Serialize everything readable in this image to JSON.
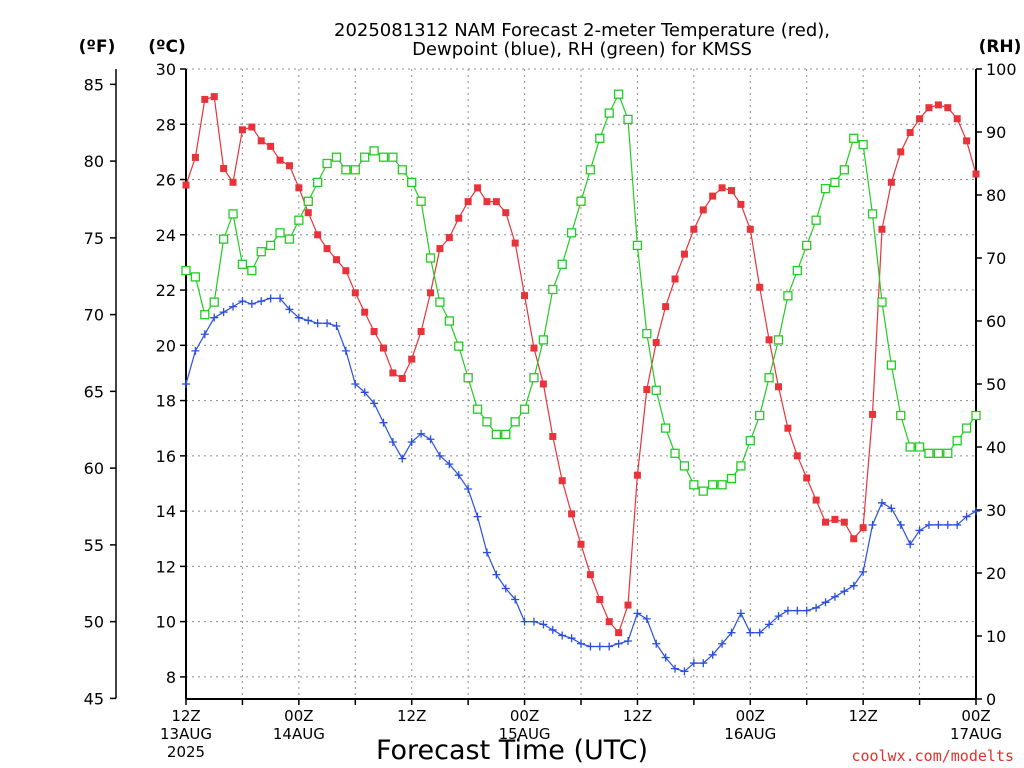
{
  "title": [
    "2025081312 NAM Forecast 2-meter Temperature (red),",
    "Dewpoint (blue), RH (green) for KMSS"
  ],
  "units": {
    "fahrenheit": "(ºF)",
    "celsius": "(ºC)",
    "rh": "(RH)"
  },
  "xlabel": "Forecast Time (UTC)",
  "credit": "coolwx.com/modelts",
  "colors": {
    "temperature": "#e8333a",
    "dewpoint": "#2a4fe0",
    "rh": "#22cc22",
    "axis": "#000000"
  },
  "chart_data": {
    "type": "line",
    "x_unit": "forecast hour from 2025-08-13 12Z",
    "xlim": [
      0,
      84
    ],
    "ylim_celsius": [
      7.2,
      30
    ],
    "ylim_rh": [
      0,
      100
    ],
    "fahrenheit_ticks": [
      45,
      50,
      55,
      60,
      65,
      70,
      75,
      80,
      85
    ],
    "celsius_ticks": [
      8,
      10,
      12,
      14,
      16,
      18,
      20,
      22,
      24,
      26,
      28,
      30
    ],
    "rh_ticks": [
      0,
      10,
      20,
      30,
      40,
      50,
      60,
      70,
      80,
      90,
      100
    ],
    "x_ticks": [
      {
        "hour": 0,
        "label": "12Z",
        "sub": "13AUG",
        "sub2": "2025"
      },
      {
        "hour": 12,
        "label": "00Z",
        "sub": "14AUG",
        "sub2": ""
      },
      {
        "hour": 24,
        "label": "12Z",
        "sub": "",
        "sub2": ""
      },
      {
        "hour": 36,
        "label": "00Z",
        "sub": "15AUG",
        "sub2": ""
      },
      {
        "hour": 48,
        "label": "12Z",
        "sub": "",
        "sub2": ""
      },
      {
        "hour": 60,
        "label": "00Z",
        "sub": "16AUG",
        "sub2": ""
      },
      {
        "hour": 72,
        "label": "12Z",
        "sub": "",
        "sub2": ""
      },
      {
        "hour": 84,
        "label": "00Z",
        "sub": "17AUG",
        "sub2": ""
      }
    ],
    "series": [
      {
        "name": "Temperature",
        "axis": "celsius",
        "x": [
          0,
          1,
          2,
          3,
          4,
          5,
          6,
          7,
          8,
          9,
          10,
          11,
          12,
          13,
          14,
          15,
          16,
          17,
          18,
          19,
          20,
          21,
          22,
          23,
          24,
          25,
          26,
          27,
          28,
          29,
          30,
          31,
          32,
          33,
          34,
          35,
          36,
          37,
          38,
          39,
          40,
          41,
          42,
          43,
          44,
          45,
          46,
          47,
          48,
          49,
          50,
          51,
          52,
          53,
          54,
          55,
          56,
          57,
          58,
          59,
          60,
          61,
          62,
          63,
          64,
          65,
          66,
          67,
          68,
          69,
          70,
          71,
          72,
          73,
          74,
          75,
          76,
          77,
          78,
          79,
          80,
          81,
          82,
          83,
          84
        ],
        "values": [
          25.8,
          26.8,
          28.9,
          29.0,
          26.4,
          25.9,
          27.8,
          27.9,
          27.4,
          27.2,
          26.7,
          26.5,
          25.7,
          24.8,
          24.0,
          23.5,
          23.1,
          22.7,
          21.9,
          21.2,
          20.5,
          19.9,
          19.0,
          18.8,
          19.5,
          20.5,
          21.9,
          23.5,
          23.9,
          24.6,
          25.2,
          25.7,
          25.2,
          25.2,
          24.8,
          23.7,
          21.8,
          19.9,
          18.6,
          16.7,
          15.1,
          13.9,
          12.8,
          11.7,
          10.8,
          10.0,
          9.6,
          10.6,
          15.3,
          18.4,
          20.1,
          21.4,
          22.4,
          23.3,
          24.2,
          24.9,
          25.4,
          25.7,
          25.6,
          25.1,
          24.2,
          22.1,
          20.2,
          18.5,
          17.0,
          16.0,
          15.2,
          14.4,
          13.6,
          13.7,
          13.6,
          13.0,
          13.4,
          17.5,
          24.2,
          25.9,
          27.0,
          27.7,
          28.2,
          28.6,
          28.7,
          28.6,
          28.2,
          27.4,
          26.2
        ]
      },
      {
        "name": "Dewpoint",
        "axis": "celsius",
        "x": [
          0,
          1,
          2,
          3,
          4,
          5,
          6,
          7,
          8,
          9,
          10,
          11,
          12,
          13,
          14,
          15,
          16,
          17,
          18,
          19,
          20,
          21,
          22,
          23,
          24,
          25,
          26,
          27,
          28,
          29,
          30,
          31,
          32,
          33,
          34,
          35,
          36,
          37,
          38,
          39,
          40,
          41,
          42,
          43,
          44,
          45,
          46,
          47,
          48,
          49,
          50,
          51,
          52,
          53,
          54,
          55,
          56,
          57,
          58,
          59,
          60,
          61,
          62,
          63,
          64,
          65,
          66,
          67,
          68,
          69,
          70,
          71,
          72,
          73,
          74,
          75,
          76,
          77,
          78,
          79,
          80,
          81,
          82,
          83,
          84
        ],
        "values": [
          18.6,
          19.8,
          20.4,
          21.0,
          21.2,
          21.4,
          21.6,
          21.5,
          21.6,
          21.7,
          21.7,
          21.3,
          21.0,
          20.9,
          20.8,
          20.8,
          20.7,
          19.8,
          18.6,
          18.3,
          17.9,
          17.2,
          16.5,
          15.9,
          16.5,
          16.8,
          16.6,
          16.0,
          15.7,
          15.3,
          14.8,
          13.8,
          12.5,
          11.7,
          11.2,
          10.8,
          10.0,
          10.0,
          9.9,
          9.7,
          9.5,
          9.4,
          9.2,
          9.1,
          9.1,
          9.1,
          9.2,
          9.3,
          10.3,
          10.1,
          9.2,
          8.7,
          8.3,
          8.2,
          8.5,
          8.5,
          8.8,
          9.2,
          9.6,
          10.3,
          9.6,
          9.6,
          9.9,
          10.2,
          10.4,
          10.4,
          10.4,
          10.5,
          10.7,
          10.9,
          11.1,
          11.3,
          11.8,
          13.5,
          14.3,
          14.1,
          13.5,
          12.8,
          13.3,
          13.5,
          13.5,
          13.5,
          13.5,
          13.8,
          14.0
        ]
      },
      {
        "name": "RH",
        "axis": "rh",
        "x": [
          0,
          1,
          2,
          3,
          4,
          5,
          6,
          7,
          8,
          9,
          10,
          11,
          12,
          13,
          14,
          15,
          16,
          17,
          18,
          19,
          20,
          21,
          22,
          23,
          24,
          25,
          26,
          27,
          28,
          29,
          30,
          31,
          32,
          33,
          34,
          35,
          36,
          37,
          38,
          39,
          40,
          41,
          42,
          43,
          44,
          45,
          46,
          47,
          48,
          49,
          50,
          51,
          52,
          53,
          54,
          55,
          56,
          57,
          58,
          59,
          60,
          61,
          62,
          63,
          64,
          65,
          66,
          67,
          68,
          69,
          70,
          71,
          72,
          73,
          74,
          75,
          76,
          77,
          78,
          79,
          80,
          81,
          82,
          83,
          84
        ],
        "values": [
          68,
          67,
          61,
          63,
          73,
          77,
          69,
          68,
          71,
          72,
          74,
          73,
          76,
          79,
          82,
          85,
          86,
          84,
          84,
          86,
          87,
          86,
          86,
          84,
          82,
          79,
          70,
          63,
          60,
          56,
          51,
          46,
          44,
          42,
          42,
          44,
          46,
          51,
          57,
          65,
          69,
          74,
          79,
          84,
          89,
          93,
          96,
          92,
          72,
          58,
          49,
          43,
          39,
          37,
          34,
          33,
          34,
          34,
          35,
          37,
          41,
          45,
          51,
          57,
          64,
          68,
          72,
          76,
          81,
          82,
          84,
          89,
          88,
          77,
          63,
          53,
          45,
          40,
          40,
          39,
          39,
          39,
          41,
          43,
          45
        ]
      }
    ]
  }
}
